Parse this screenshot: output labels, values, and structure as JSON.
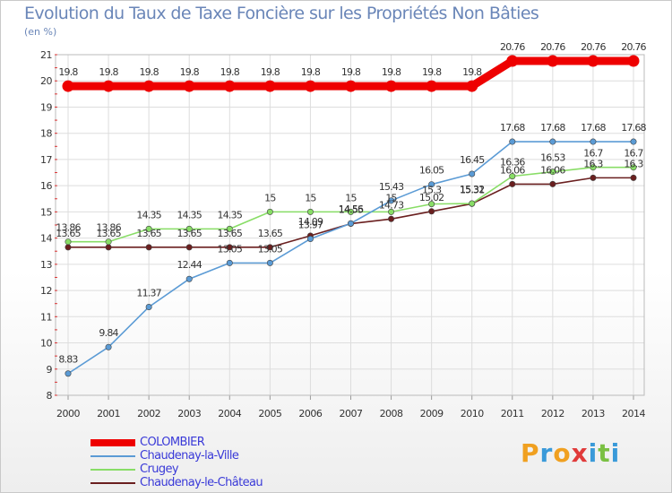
{
  "header": {
    "title": "Evolution du Taux de Taxe Foncière sur les Propriétés Non Bâties",
    "unit": "(en %)"
  },
  "chart_data": {
    "type": "line",
    "title": "Evolution du Taux de Taxe Foncière sur les Propriétés Non Bâties",
    "ylabel": "(en %)",
    "xlabel": "",
    "ylim": [
      8,
      21
    ],
    "yticks": [
      "8",
      "9",
      "10",
      "11",
      "12",
      "13",
      "14",
      "15",
      "16",
      "17",
      "18",
      "19",
      "20",
      "21"
    ],
    "categories": [
      "2000",
      "2001",
      "2002",
      "2003",
      "2004",
      "2005",
      "2006",
      "2007",
      "2008",
      "2009",
      "2010",
      "2011",
      "2012",
      "2013",
      "2014"
    ],
    "grid": true,
    "series": [
      {
        "name": "COLOMBIER",
        "color": "#ee0000",
        "values": [
          19.8,
          19.8,
          19.8,
          19.8,
          19.8,
          19.8,
          19.8,
          19.8,
          19.8,
          19.8,
          19.8,
          20.76,
          20.76,
          20.76,
          20.76
        ],
        "labels": [
          "19.8",
          "19.8",
          "19.8",
          "19.8",
          "19.8",
          "19.8",
          "19.8",
          "19.8",
          "19.8",
          "19.8",
          "19.8",
          "20.76",
          "20.76",
          "20.76",
          "20.76"
        ]
      },
      {
        "name": "Chaudenay-la-Ville",
        "color": "#5b9bd5",
        "values": [
          8.83,
          9.84,
          11.37,
          12.44,
          13.05,
          13.05,
          13.97,
          14.56,
          15.43,
          16.05,
          16.45,
          17.68,
          17.68,
          17.68,
          17.68
        ],
        "labels": [
          "8.83",
          "9.84",
          "11.37",
          "12.44",
          "13.05",
          "13.05",
          "13.97",
          "14.56",
          "15.43",
          "16.05",
          "16.45",
          "17.68",
          "17.68",
          "17.68",
          "17.68"
        ]
      },
      {
        "name": "Crugey",
        "color": "#88dd66",
        "values": [
          13.86,
          13.86,
          14.35,
          14.35,
          14.35,
          15,
          15,
          15,
          15,
          15.3,
          15.32,
          16.36,
          16.53,
          16.7,
          16.7
        ],
        "labels": [
          "13.86",
          "13.86",
          "14.35",
          "14.35",
          "14.35",
          "15",
          "15",
          "15",
          "15",
          "15.3",
          "15.32",
          "16.36",
          "16.53",
          "16.7",
          "16.7"
        ]
      },
      {
        "name": "Chaudenay-le-Château",
        "color": "#6a1f1f",
        "values": [
          13.65,
          13.65,
          13.65,
          13.65,
          13.65,
          13.65,
          14.09,
          14.55,
          14.73,
          15.02,
          15.31,
          16.06,
          16.06,
          16.3,
          16.3
        ],
        "labels": [
          "13.65",
          "13.65",
          "13.65",
          "13.65",
          "13.65",
          "13.65",
          "14.09",
          "14.55",
          "14.73",
          "15.02",
          "15.31",
          "16.06",
          "16.06",
          "16.3",
          "16.3"
        ]
      }
    ]
  },
  "legend": {
    "items": [
      "COLOMBIER",
      "Chaudenay-la-Ville",
      "Crugey",
      "Chaudenay-le-Château"
    ]
  },
  "logo": {
    "letters": [
      "P",
      "r",
      "o",
      "x",
      "i",
      "t",
      "i"
    ],
    "colors": [
      "#f0a020",
      "#3a9ad9",
      "#f0a020",
      "#e03a3a",
      "#3a9ad9",
      "#7ac043",
      "#3a9ad9"
    ]
  }
}
